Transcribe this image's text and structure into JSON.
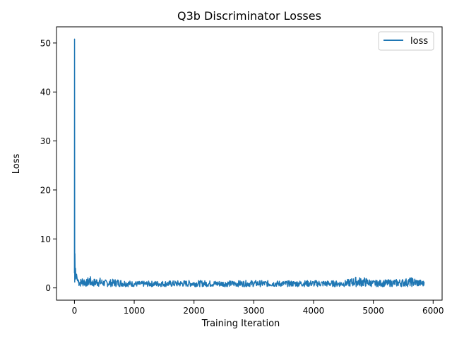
{
  "chart_data": {
    "type": "line",
    "title": "Q3b Discriminator Losses",
    "xlabel": "Training Iteration",
    "ylabel": "Loss",
    "xlim": [
      -300,
      6150
    ],
    "ylim": [
      -2.5,
      53.3
    ],
    "xticks": [
      0,
      1000,
      2000,
      3000,
      4000,
      5000,
      6000
    ],
    "xtick_labels": [
      "0",
      "1000",
      "2000",
      "3000",
      "4000",
      "5000",
      "6000"
    ],
    "yticks": [
      0,
      10,
      20,
      30,
      40,
      50
    ],
    "ytick_labels": [
      "0",
      "10",
      "20",
      "30",
      "40",
      "50"
    ],
    "grid": false,
    "legend_position": "top-right",
    "series": [
      {
        "name": "loss",
        "color": "#1f77b4",
        "x": [
          0,
          2,
          5,
          8,
          12,
          18,
          25,
          35,
          50,
          70,
          100,
          150,
          200,
          250,
          300,
          400,
          500,
          700,
          1000,
          1500,
          2000,
          2500,
          3000,
          3500,
          4000,
          4500,
          4700,
          4850,
          5000,
          5500,
          5650,
          5850
        ],
        "values": [
          3.0,
          50.8,
          1.2,
          7.0,
          2.5,
          4.0,
          1.8,
          2.8,
          1.5,
          2.2,
          1.6,
          2.3,
          1.4,
          2.4,
          1.5,
          2.0,
          1.4,
          1.6,
          1.1,
          1.2,
          1.3,
          1.2,
          1.3,
          1.2,
          1.3,
          1.2,
          2.0,
          1.9,
          1.3,
          1.6,
          1.9,
          1.2
        ]
      }
    ]
  }
}
